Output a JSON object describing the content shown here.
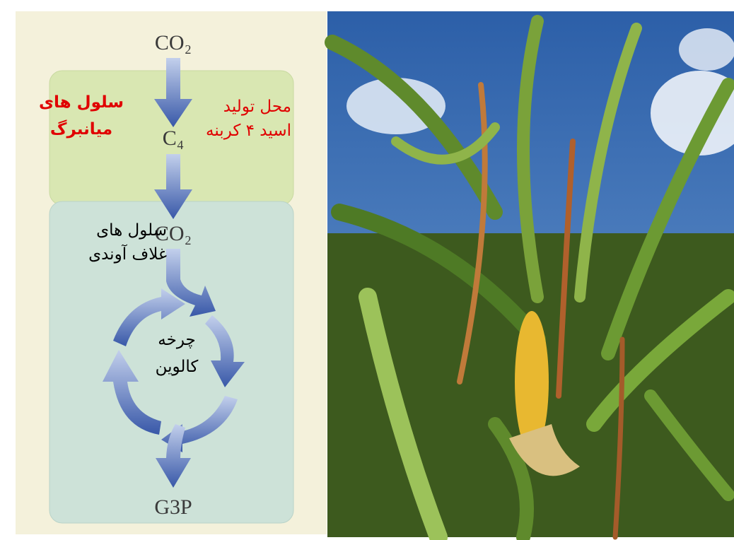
{
  "diagram": {
    "labels": {
      "co2_top": "CO₂",
      "c4": "C₄",
      "co2_mid": "CO₂",
      "g3p": "G3P"
    },
    "mesophyll": [
      "سلول های",
      "میانبرگ"
    ],
    "c4_site": [
      "محل تولید",
      "اسید ۴ کربنه"
    ],
    "bundle_sheath": [
      "سلول های",
      "غلاف آوندی"
    ],
    "calvin_cycle": [
      "چرخه",
      "کالوین"
    ]
  }
}
